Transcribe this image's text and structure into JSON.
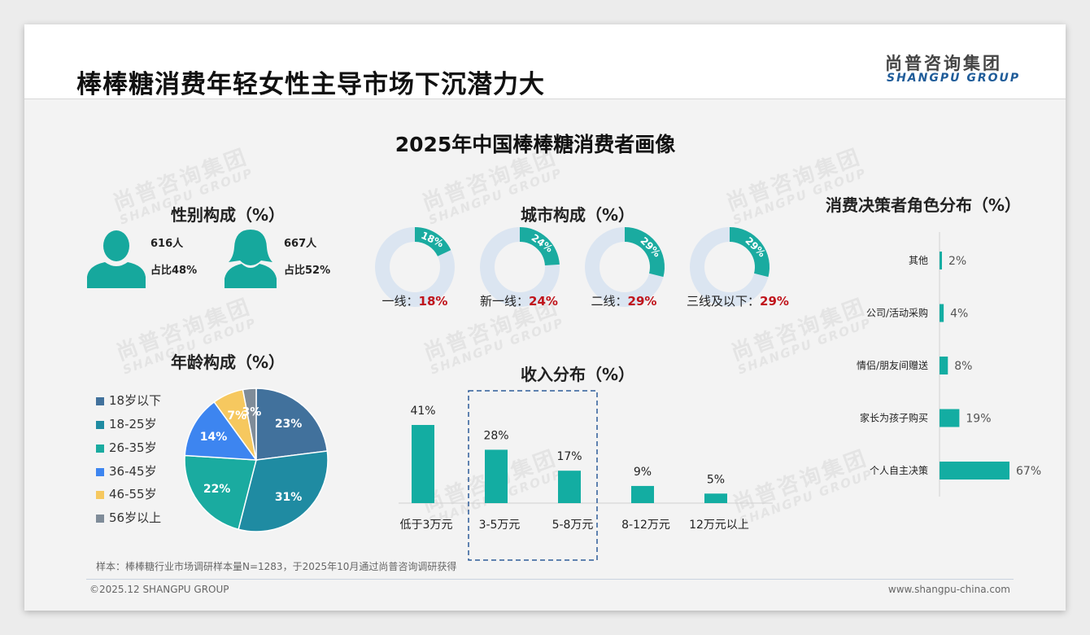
{
  "header": {
    "title": "棒棒糖消费年轻女性主导市场下沉潜力大",
    "logo_cn": "尚普咨询集团",
    "logo_en": "SHANGPU GROUP"
  },
  "subtitle": "2025年中国棒棒糖消费者画像",
  "gender": {
    "title": "性别构成（%）",
    "male_count": "616人",
    "male_share": "占比48%",
    "female_count": "667人",
    "female_share": "占比52%"
  },
  "city_title": "城市构成（%）",
  "age_title": "年龄构成（%）",
  "income_title": "收入分布（%）",
  "decision_title": "消费决策者角色分布（%）",
  "footer": {
    "note": "样本：棒棒糖行业市场调研样本量N=1283，于2025年10月通过尚普咨询调研获得",
    "copyright": "©2025.12 SHANGPU GROUP",
    "website": "www.shangpu-china.com"
  },
  "chart_data": [
    {
      "type": "donut",
      "title": "城市构成（%）",
      "categories": [
        "一线：",
        "新一线：",
        "二线：",
        "三线及以下："
      ],
      "values": [
        18,
        24,
        29,
        29
      ],
      "value_labels": [
        "18%",
        "24%",
        "29%",
        "29%"
      ],
      "colors": {
        "filled": "#1aaba0",
        "remainder": "#dbe5f1",
        "value_text": "#c0141b"
      }
    },
    {
      "type": "pie",
      "title": "年龄构成（%）",
      "categories": [
        "18岁以下",
        "18-25岁",
        "26-35岁",
        "36-45岁",
        "46-55岁",
        "56岁以上"
      ],
      "values": [
        23,
        31,
        22,
        14,
        7,
        3
      ],
      "value_labels": [
        "23%",
        "31%",
        "22%",
        "14%",
        "7%",
        "3%"
      ],
      "colors": [
        "#41719c",
        "#1f8ba2",
        "#1aaba0",
        "#3d85f0",
        "#f6c85f",
        "#7f8c99"
      ],
      "legend": "left"
    },
    {
      "type": "bar",
      "title": "收入分布（%）",
      "categories": [
        "低于3万元",
        "3-5万元",
        "5-8万元",
        "8-12万元",
        "12万元以上"
      ],
      "values": [
        41,
        28,
        17,
        9,
        5
      ],
      "value_labels": [
        "41%",
        "28%",
        "17%",
        "9%",
        "5%"
      ],
      "color": "#13ada2",
      "highlight": [
        "3-5万元",
        "5-8万元"
      ]
    },
    {
      "type": "bar",
      "orientation": "horizontal",
      "title": "消费决策者角色分布（%）",
      "categories": [
        "其他",
        "公司/活动采购",
        "情侣/朋友间赠送",
        "家长为孩子购买",
        "个人自主决策"
      ],
      "values": [
        2,
        4,
        8,
        19,
        67
      ],
      "value_labels": [
        "2%",
        "4%",
        "8%",
        "19%",
        "67%"
      ],
      "color": "#13ada2"
    }
  ]
}
